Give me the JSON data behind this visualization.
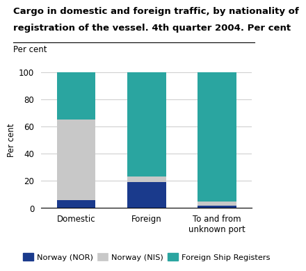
{
  "title_line1": "Cargo in domestic and foreign traffic, by nationality of",
  "title_line2": "registration of the vessel. 4th quarter 2004. Per cent",
  "ylabel": "Per cent",
  "categories": [
    "Domestic",
    "Foreign",
    "To and from\nunknown port"
  ],
  "nor_values": [
    6,
    19,
    2
  ],
  "nis_values": [
    59,
    4,
    3
  ],
  "foreign_values": [
    35,
    77,
    95
  ],
  "color_nor": "#1a3a8c",
  "color_nis": "#c8c8c8",
  "color_foreign": "#2aa5a0",
  "ylim": [
    0,
    100
  ],
  "yticks": [
    0,
    20,
    40,
    60,
    80,
    100
  ],
  "legend_labels": [
    "Norway (NOR)",
    "Norway (NIS)",
    "Foreign Ship Registers"
  ],
  "bar_width": 0.55,
  "background_color": "#ffffff",
  "grid_color": "#d0d0d0",
  "title_fontsize": 9.5,
  "axis_fontsize": 8.5,
  "legend_fontsize": 8.2
}
